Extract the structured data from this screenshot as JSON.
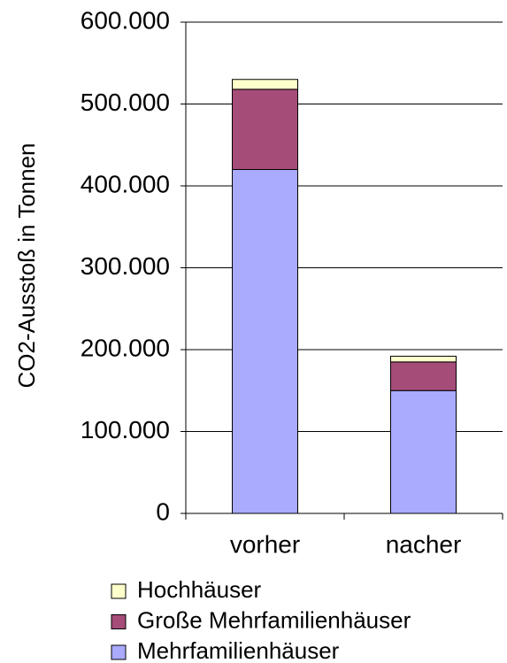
{
  "chart_data": {
    "type": "bar",
    "stacked": true,
    "y_label": "CO2-Ausstoß in Tonnen",
    "categories": [
      "vorher",
      "nacher"
    ],
    "series": [
      {
        "name": "Mehrfamilienhäuser",
        "color": "#aaaaff",
        "values": [
          420000,
          150000
        ]
      },
      {
        "name": "Große Mehrfamilienhäuser",
        "color": "#a64c79",
        "values": [
          98000,
          35000
        ]
      },
      {
        "name": "Hochhäuser",
        "color": "#ffffcc",
        "values": [
          12000,
          7000
        ]
      }
    ],
    "ylim": [
      0,
      600000
    ],
    "yticks": [
      0,
      {
        "value": 100000,
        "label": "100.000"
      },
      {
        "value": 200000,
        "label": "200.000"
      },
      {
        "value": 300000,
        "label": "300.000"
      },
      {
        "value": 400000,
        "label": "400.000"
      },
      {
        "value": 500000,
        "label": "500.000"
      },
      {
        "value": 600000,
        "label": "600.000"
      }
    ],
    "grid": true
  }
}
